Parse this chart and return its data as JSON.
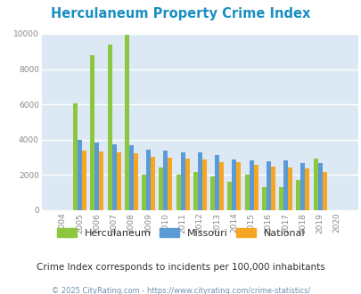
{
  "title": "Herculaneum Property Crime Index",
  "years": [
    2004,
    2005,
    2006,
    2007,
    2008,
    2009,
    2010,
    2011,
    2012,
    2013,
    2014,
    2015,
    2016,
    2017,
    2018,
    2019,
    2020
  ],
  "herculaneum": [
    0,
    6050,
    8800,
    9400,
    9950,
    2000,
    2400,
    2000,
    2150,
    1900,
    1600,
    2000,
    1300,
    1300,
    1700,
    2950,
    0
  ],
  "missouri": [
    0,
    4000,
    3850,
    3750,
    3700,
    3450,
    3400,
    3300,
    3300,
    3150,
    2900,
    2850,
    2800,
    2850,
    2650,
    2650,
    0
  ],
  "national": [
    0,
    3400,
    3350,
    3300,
    3250,
    3050,
    3000,
    2950,
    2900,
    2750,
    2700,
    2550,
    2480,
    2400,
    2350,
    2150,
    0
  ],
  "colors": {
    "herculaneum": "#8dc63f",
    "missouri": "#5b9bd5",
    "national": "#f5a623"
  },
  "ylim": [
    0,
    10000
  ],
  "yticks": [
    0,
    2000,
    4000,
    6000,
    8000,
    10000
  ],
  "bg_color": "#dce9f5",
  "grid_color": "#ffffff",
  "subtitle": "Crime Index corresponds to incidents per 100,000 inhabitants",
  "footer": "© 2025 CityRating.com - https://www.cityrating.com/crime-statistics/",
  "title_color": "#1a8fc1",
  "subtitle_color": "#333333",
  "footer_color": "#7090b0",
  "legend_labels": [
    "Herculaneum",
    "Missouri",
    "National"
  ]
}
